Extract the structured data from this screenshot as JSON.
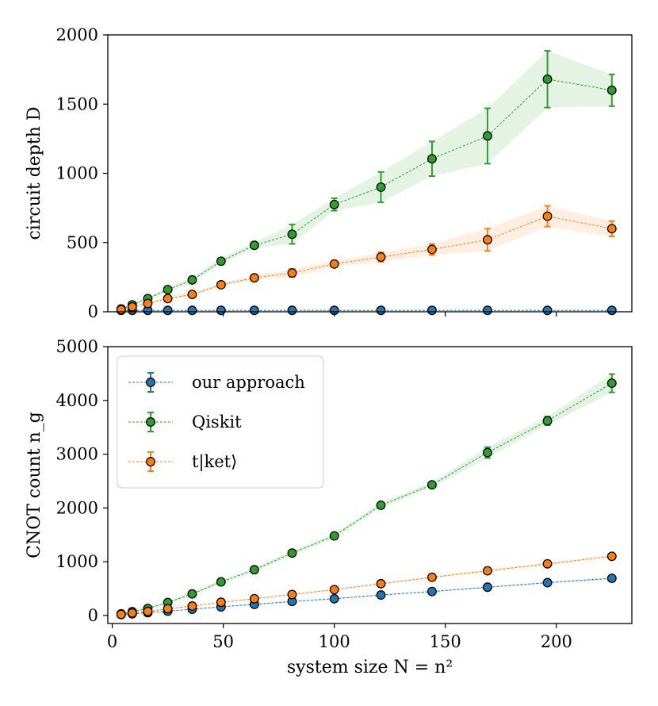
{
  "chart_data": [
    {
      "type": "line",
      "panel": "top",
      "title": "",
      "xlabel": "",
      "ylabel": "circuit depth D",
      "xlim": [
        -2,
        234
      ],
      "ylim": [
        0,
        2000
      ],
      "yticks": [
        0,
        500,
        1000,
        1500,
        2000
      ],
      "xticks": [
        50,
        100,
        150,
        200
      ],
      "x_tick_labels_shown": false,
      "grid": false,
      "x": [
        4,
        9,
        16,
        25,
        36,
        49,
        64,
        81,
        100,
        121,
        144,
        169,
        196,
        225
      ],
      "series": [
        {
          "name": "our approach",
          "color": "#1f77b4",
          "values": [
            10,
            10,
            10,
            10,
            10,
            10,
            10,
            10,
            10,
            10,
            10,
            10,
            10,
            10
          ],
          "errors": [
            3,
            3,
            3,
            3,
            3,
            3,
            3,
            3,
            3,
            3,
            3,
            3,
            3,
            3
          ]
        },
        {
          "name": "Qiskit",
          "color": "#2ca02c",
          "values": [
            20,
            50,
            95,
            160,
            230,
            365,
            480,
            560,
            775,
            900,
            1105,
            1270,
            1680,
            1600
          ],
          "errors": [
            5,
            8,
            12,
            15,
            18,
            20,
            20,
            70,
            45,
            110,
            125,
            200,
            205,
            115
          ]
        },
        {
          "name": "t|ket⟩",
          "color": "#ff7f0e",
          "values": [
            15,
            35,
            60,
            95,
            125,
            195,
            245,
            280,
            345,
            395,
            450,
            520,
            690,
            600
          ],
          "errors": [
            4,
            5,
            8,
            10,
            12,
            15,
            15,
            30,
            20,
            35,
            40,
            80,
            75,
            55
          ]
        }
      ]
    },
    {
      "type": "line",
      "panel": "bottom",
      "title": "",
      "xlabel": "system size N = n²",
      "ylabel": "CNOT count n_g",
      "xlim": [
        -2,
        234
      ],
      "ylim": [
        -150,
        5000
      ],
      "yticks": [
        0,
        1000,
        2000,
        3000,
        4000,
        5000
      ],
      "xticks": [
        0,
        50,
        100,
        150,
        200
      ],
      "grid": false,
      "legend_position": "top-left",
      "x": [
        4,
        9,
        16,
        25,
        36,
        49,
        64,
        81,
        100,
        121,
        144,
        169,
        196,
        225
      ],
      "series": [
        {
          "name": "our approach",
          "color": "#1f77b4",
          "values": [
            15,
            30,
            50,
            80,
            115,
            160,
            205,
            260,
            310,
            380,
            445,
            525,
            610,
            690
          ],
          "errors": [
            3,
            4,
            5,
            6,
            8,
            8,
            10,
            10,
            12,
            12,
            15,
            15,
            15,
            20
          ]
        },
        {
          "name": "Qiskit",
          "color": "#2ca02c",
          "values": [
            30,
            70,
            130,
            240,
            400,
            625,
            850,
            1160,
            1480,
            2050,
            2430,
            3030,
            3620,
            4320
          ],
          "errors": [
            10,
            15,
            20,
            25,
            30,
            35,
            40,
            40,
            45,
            50,
            50,
            100,
            80,
            170
          ]
        },
        {
          "name": "t|ket⟩",
          "color": "#ff7f0e",
          "values": [
            20,
            45,
            75,
            125,
            175,
            245,
            310,
            390,
            480,
            590,
            710,
            830,
            960,
            1100
          ],
          "errors": [
            4,
            5,
            6,
            8,
            10,
            10,
            12,
            12,
            14,
            15,
            18,
            20,
            20,
            25
          ]
        }
      ]
    }
  ],
  "legend": {
    "entries": [
      "our approach",
      "Qiskit",
      "t|ket⟩"
    ]
  }
}
